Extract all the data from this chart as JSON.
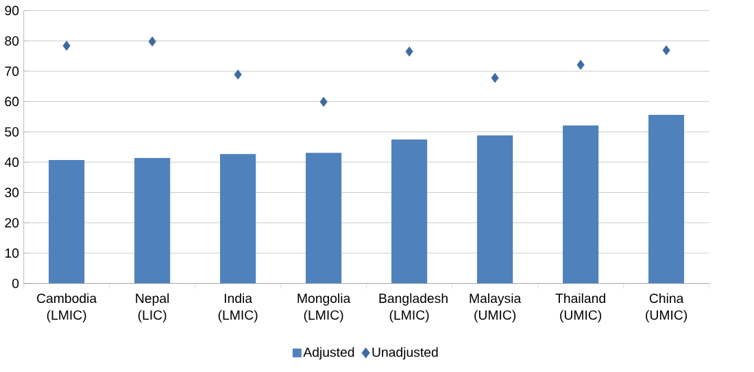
{
  "chart_data": {
    "type": "bar",
    "categories": [
      "Cambodia (LMIC)",
      "Nepal (LIC)",
      "India (LMIC)",
      "Mongolia (LMIC)",
      "Bangladesh (LMIC)",
      "Malaysia (UMIC)",
      "Thailand (UMIC)",
      "China (UMIC)"
    ],
    "series": [
      {
        "name": "Adjusted",
        "color": "#4f81bd",
        "values": [
          40.7,
          41.4,
          42.7,
          43.1,
          47.5,
          48.8,
          52.1,
          55.6
        ]
      },
      {
        "name": "Unadjusted",
        "type": "scatter",
        "color": "#3e6ba0",
        "marker": "diamond",
        "values": [
          78.4,
          79.8,
          68.9,
          59.9,
          76.5,
          67.8,
          72.1,
          76.9
        ]
      }
    ],
    "ylim": [
      0,
      90
    ],
    "yticks": [
      0,
      10,
      20,
      30,
      40,
      50,
      60,
      70,
      80,
      90
    ],
    "grid": "y",
    "legend": "bottom"
  }
}
